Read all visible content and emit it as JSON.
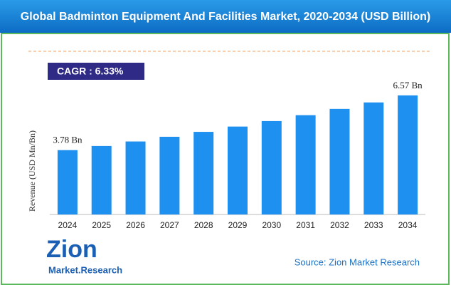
{
  "chart_data": {
    "type": "bar",
    "title": "Global Badminton Equipment And Facilities Market, 2020-2034 (USD Billion)",
    "y_label": "Revenue (USD Mn/Bn)",
    "annotation": "CAGR : 6.33%",
    "source": "Source: Zion Market Research",
    "logo": {
      "name": "Zion",
      "tagline": "Market.Research"
    },
    "categories": [
      "2024",
      "2025",
      "2026",
      "2027",
      "2028",
      "2029",
      "2030",
      "2031",
      "2032",
      "2033",
      "2034"
    ],
    "values": [
      3.78,
      3.99,
      4.22,
      4.46,
      4.71,
      4.98,
      5.26,
      5.56,
      5.88,
      6.21,
      6.57
    ],
    "value_labels": [
      "3.78 Bn",
      null,
      null,
      null,
      null,
      null,
      null,
      null,
      null,
      null,
      "6.57 Bn"
    ],
    "color": "#1e90f0",
    "ylim": [
      0.5,
      7
    ]
  }
}
